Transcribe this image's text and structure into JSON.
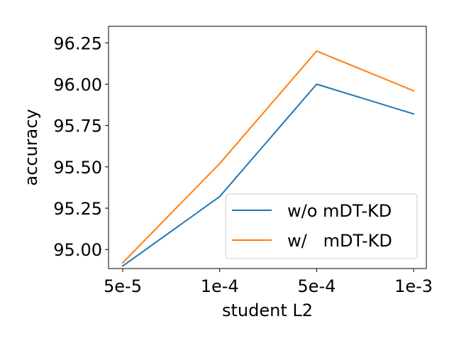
{
  "chart_data": {
    "type": "line",
    "title": "",
    "xlabel": "student L2",
    "ylabel": "accuracy",
    "categories": [
      "5e-5",
      "1e-4",
      "5e-4",
      "1e-3"
    ],
    "ylim": [
      94.885,
      96.35
    ],
    "yticks": [
      95.0,
      95.25,
      95.5,
      95.75,
      96.0,
      96.25
    ],
    "ytick_labels": [
      "95.00",
      "95.25",
      "95.50",
      "95.75",
      "96.00",
      "96.25"
    ],
    "grid": false,
    "legend_position": "lower-right",
    "series": [
      {
        "name": "w/o mDT-KD",
        "color": "#1f77b4",
        "values": [
          94.9,
          95.32,
          96.0,
          95.82
        ]
      },
      {
        "name": "w/   mDT-KD",
        "color": "#ff7f0e",
        "values": [
          94.92,
          95.52,
          96.2,
          95.96
        ]
      }
    ]
  }
}
